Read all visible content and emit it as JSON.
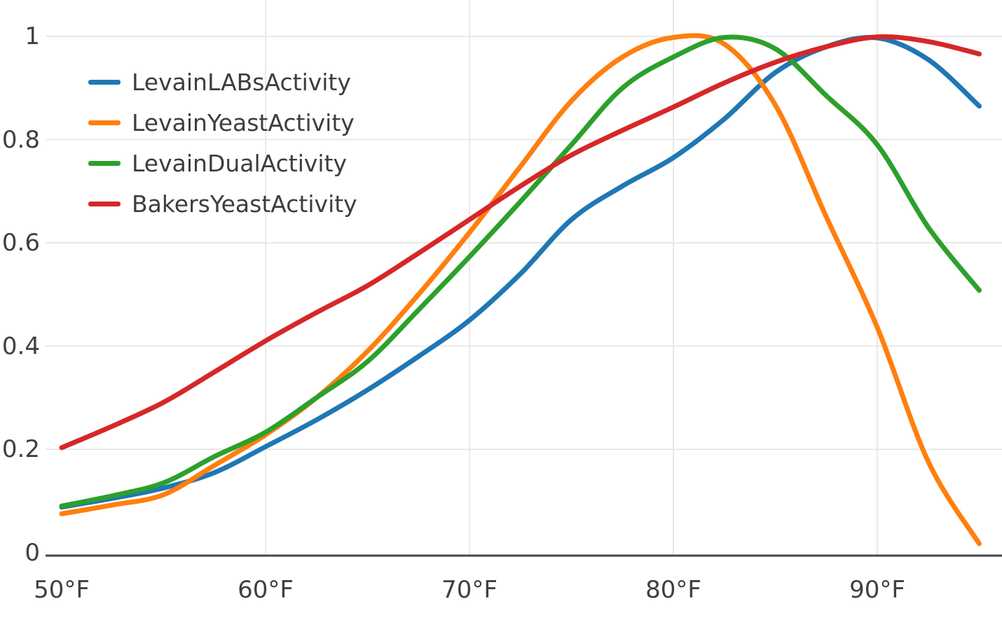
{
  "chart_data": {
    "type": "line",
    "title": "",
    "xlabel": "",
    "ylabel": "",
    "x_unit": "°F",
    "x": [
      50,
      52.5,
      55,
      57.5,
      60,
      62.5,
      65,
      67.5,
      70,
      72.5,
      75,
      77.5,
      80,
      82.5,
      85,
      87.5,
      90,
      92.5,
      95
    ],
    "series": [
      {
        "name": "LevainLABsActivity",
        "color": "#1f77b4",
        "values": [
          0.088,
          0.105,
          0.125,
          0.155,
          0.205,
          0.257,
          0.315,
          0.38,
          0.45,
          0.54,
          0.645,
          0.71,
          0.765,
          0.84,
          0.93,
          0.98,
          0.997,
          0.955,
          0.865
        ]
      },
      {
        "name": "LevainYeastActivity",
        "color": "#ff7f0e",
        "values": [
          0.075,
          0.092,
          0.112,
          0.169,
          0.228,
          0.3,
          0.39,
          0.5,
          0.62,
          0.748,
          0.875,
          0.96,
          0.998,
          0.985,
          0.867,
          0.65,
          0.436,
          0.176,
          0.017
        ]
      },
      {
        "name": "LevainDualActivity",
        "color": "#2ca02c",
        "values": [
          0.09,
          0.11,
          0.135,
          0.186,
          0.233,
          0.3,
          0.37,
          0.47,
          0.573,
          0.68,
          0.79,
          0.9,
          0.96,
          0.998,
          0.976,
          0.885,
          0.79,
          0.63,
          0.508
        ]
      },
      {
        "name": "BakersYeastActivity",
        "color": "#d62728",
        "values": [
          0.203,
          0.245,
          0.291,
          0.35,
          0.41,
          0.465,
          0.517,
          0.58,
          0.645,
          0.71,
          0.77,
          0.818,
          0.863,
          0.91,
          0.95,
          0.98,
          0.999,
          0.99,
          0.966
        ]
      }
    ],
    "x_ticks": [
      {
        "value": 50,
        "label": "50°F"
      },
      {
        "value": 60,
        "label": "60°F"
      },
      {
        "value": 70,
        "label": "70°F"
      },
      {
        "value": 80,
        "label": "80°F"
      },
      {
        "value": 90,
        "label": "90°F"
      }
    ],
    "y_ticks": [
      {
        "value": 0,
        "label": "0"
      },
      {
        "value": 0.2,
        "label": "0.2"
      },
      {
        "value": 0.4,
        "label": "0.4"
      },
      {
        "value": 0.6,
        "label": "0.6"
      },
      {
        "value": 0.8,
        "label": "0.8"
      },
      {
        "value": 1,
        "label": "1"
      }
    ],
    "x_range": [
      49.2,
      96.1
    ],
    "y_range": [
      0,
      1.07
    ],
    "grid": {
      "vertical_at": [
        60,
        70,
        80,
        90
      ],
      "horizontal_at": [
        0.2,
        0.4,
        0.6,
        0.8,
        1.0
      ],
      "color": "#e9e9e9"
    },
    "axis_line_color": "#444444",
    "tick_label_color": "#404040",
    "legend_position": "top-left",
    "background": "#ffffff"
  }
}
